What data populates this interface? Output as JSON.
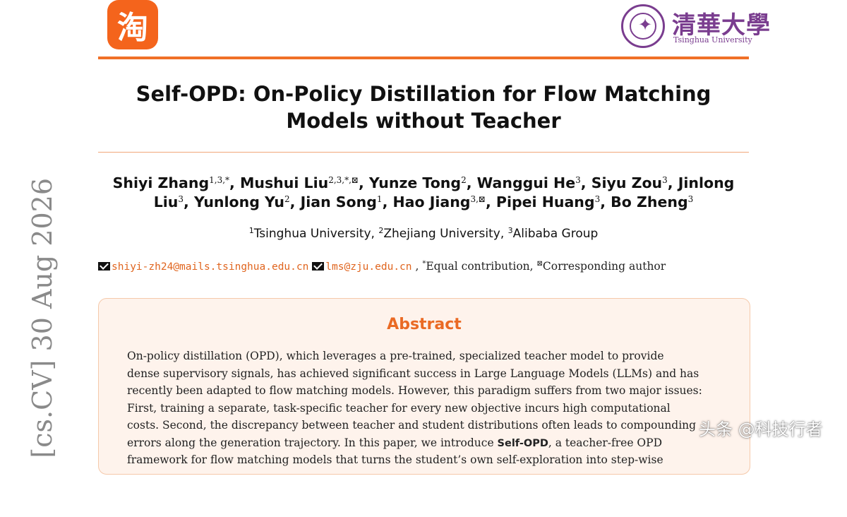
{
  "header": {
    "left_logo_char": "淘",
    "right_logo_cn": "清華大學",
    "right_logo_en": "Tsinghua University"
  },
  "title": {
    "line1": "Self-OPD: On-Policy Distillation for Flow Matching",
    "line2": "Models without Teacher"
  },
  "authors": {
    "line1": [
      {
        "name": "Shiyi Zhang",
        "sup": "1,3,*",
        "sep": ", "
      },
      {
        "name": "Mushui Liu",
        "sup": "2,3,*,⊠",
        "sep": ", "
      },
      {
        "name": "Yunze Tong",
        "sup": "2",
        "sep": ", "
      },
      {
        "name": "Wanggui He",
        "sup": "3",
        "sep": ", "
      },
      {
        "name": "Siyu Zou",
        "sup": "3",
        "sep": ", "
      },
      {
        "name": "Jinlong",
        "sup": "",
        "sep": ""
      }
    ],
    "line2": [
      {
        "name": "Liu",
        "sup": "3",
        "sep": ", "
      },
      {
        "name": "Yunlong Yu",
        "sup": "2",
        "sep": ", "
      },
      {
        "name": "Jian Song",
        "sup": "1",
        "sep": ", "
      },
      {
        "name": "Hao Jiang",
        "sup": "3,⊠",
        "sep": ", "
      },
      {
        "name": "Pipei Huang",
        "sup": "3",
        "sep": ", "
      },
      {
        "name": "Bo Zheng",
        "sup": "3",
        "sep": ""
      }
    ]
  },
  "affiliations": [
    {
      "sup": "1",
      "name": "Tsinghua University"
    },
    {
      "sup": "2",
      "name": "Zhejiang University"
    },
    {
      "sup": "3",
      "name": "Alibaba Group"
    }
  ],
  "contacts": {
    "email1": "shiyi-zh24@mails.tsinghua.edu.cn",
    "email2": "lms@zju.edu.cn",
    "equal_sup": "*",
    "equal_text": "Equal contribution",
    "corr_sup": "⊠",
    "corr_text": "Corresponding author"
  },
  "abstract": {
    "heading": "Abstract",
    "lines": [
      {
        "pre": "On-policy distillation (OPD), which leverages a pre-trained, specialized teacher model to provide",
        "bold": "",
        "post": ""
      },
      {
        "pre": "dense supervisory signals, has achieved significant success in Large Language Models (LLMs) and has",
        "bold": "",
        "post": ""
      },
      {
        "pre": "recently been adapted to flow matching models. However, this paradigm suffers from two major issues:",
        "bold": "",
        "post": ""
      },
      {
        "pre": "First, training a separate, task-specific teacher for every new objective incurs high computational",
        "bold": "",
        "post": ""
      },
      {
        "pre": "costs. Second, the discrepancy between teacher and student distributions often leads to compounding",
        "bold": "",
        "post": ""
      },
      {
        "pre": "errors along the generation trajectory. In this paper, we introduce ",
        "bold": "Self-OPD",
        "post": ", a teacher-free OPD"
      },
      {
        "pre": "framework for flow matching models that turns the student’s own self-exploration into step-wise",
        "bold": "",
        "post": ""
      }
    ]
  },
  "sidebar_stamp": "[cs.CV]  30 Aug 2026",
  "watermark": "头条 @科技行者"
}
